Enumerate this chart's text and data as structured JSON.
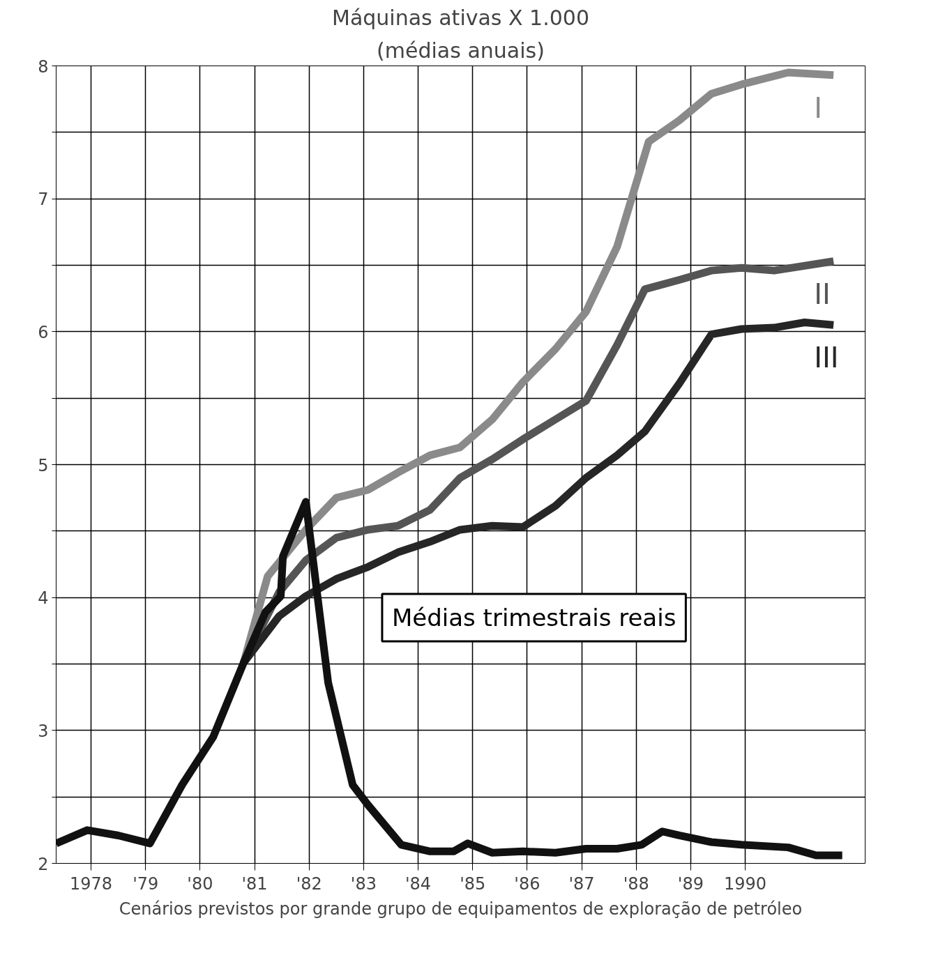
{
  "chart_data": {
    "type": "line",
    "title": "Máquinas ativas X 1.000",
    "subtitle": "(médias anuais)",
    "xlabel": "Cenários previstos por grande grupo de equipamentos de exploração de petróleo",
    "xlim": [
      1977.36,
      1992.2
    ],
    "ylim": [
      2,
      8
    ],
    "xticks": [
      1978,
      {
        "value": 1979,
        "label": "'79"
      },
      {
        "value": 1980,
        "label": "'80"
      },
      {
        "value": 1981,
        "label": "'81"
      },
      {
        "value": 1982,
        "label": "'82"
      },
      {
        "value": 1983,
        "label": "'83"
      },
      {
        "value": 1984,
        "label": "'84"
      },
      {
        "value": 1985,
        "label": "'85"
      },
      {
        "value": 1986,
        "label": "'86"
      },
      {
        "value": 1987,
        "label": "'87"
      },
      {
        "value": 1988,
        "label": "'88"
      },
      {
        "value": 1989,
        "label": "'89"
      },
      1990
    ],
    "yticks": [
      2,
      {
        "value": 2.5,
        "label": null
      },
      3,
      {
        "value": 3.5,
        "label": null
      },
      4,
      {
        "value": 4.5,
        "label": null
      },
      5,
      {
        "value": 5.5,
        "label": null
      },
      6,
      {
        "value": 6.5,
        "label": null
      },
      7,
      {
        "value": 7.5,
        "label": null
      },
      8
    ],
    "grid": true,
    "marker": "none",
    "line_style": "solid",
    "series": [
      {
        "name": "I",
        "color": "#8a8a8a",
        "x": [
          1980.8,
          1981.24,
          1981.94,
          1982.5,
          1983.08,
          1983.63,
          1984.22,
          1984.77,
          1985.36,
          1985.92,
          1986.52,
          1987.08,
          1987.65,
          1988.23,
          1988.79,
          1989.38,
          1989.93,
          1990.79,
          1991.62
        ],
        "values": [
          3.51,
          4.16,
          4.51,
          4.75,
          4.81,
          4.94,
          5.07,
          5.13,
          5.34,
          5.62,
          5.87,
          6.15,
          6.64,
          7.43,
          7.59,
          7.79,
          7.86,
          7.95,
          7.93
        ]
      },
      {
        "name": "II",
        "color": "#555555",
        "x": [
          1980.8,
          1981.45,
          1981.94,
          1982.5,
          1983.08,
          1983.63,
          1984.22,
          1984.77,
          1985.36,
          1985.92,
          1986.52,
          1987.08,
          1987.65,
          1988.16,
          1988.79,
          1989.38,
          1989.93,
          1990.53,
          1991.62
        ],
        "values": [
          3.51,
          4.04,
          4.28,
          4.45,
          4.51,
          4.54,
          4.66,
          4.9,
          5.04,
          5.19,
          5.34,
          5.48,
          5.9,
          6.32,
          6.39,
          6.46,
          6.48,
          6.46,
          6.53
        ]
      },
      {
        "name": "III",
        "color": "#262626",
        "x": [
          1980.8,
          1981.45,
          1981.94,
          1982.5,
          1983.08,
          1983.63,
          1984.22,
          1984.77,
          1985.36,
          1985.92,
          1986.52,
          1987.08,
          1987.65,
          1988.16,
          1988.79,
          1989.38,
          1989.93,
          1990.53,
          1991.09,
          1991.62
        ],
        "values": [
          3.51,
          3.86,
          4.01,
          4.14,
          4.23,
          4.34,
          4.42,
          4.51,
          4.54,
          4.53,
          4.69,
          4.9,
          5.07,
          5.25,
          5.61,
          5.98,
          6.02,
          6.03,
          6.07,
          6.05
        ]
      },
      {
        "name": "Médias trimestrais reais",
        "color": "#111111",
        "x": [
          1977.36,
          1977.93,
          1978.5,
          1979.08,
          1979.67,
          1980.24,
          1980.8,
          1981.2,
          1981.48,
          1981.52,
          1981.94,
          1982.35,
          1982.8,
          1983.08,
          1983.69,
          1984.22,
          1984.65,
          1984.91,
          1985.36,
          1985.92,
          1986.52,
          1987.08,
          1987.65,
          1988.1,
          1988.48,
          1988.79,
          1989.38,
          1989.93,
          1990.79,
          1991.3,
          1991.78
        ],
        "values": [
          2.15,
          2.25,
          2.21,
          2.15,
          2.59,
          2.95,
          3.51,
          3.89,
          4.01,
          4.31,
          4.72,
          3.36,
          2.59,
          2.44,
          2.14,
          2.09,
          2.09,
          2.15,
          2.08,
          2.09,
          2.08,
          2.11,
          2.11,
          2.14,
          2.24,
          2.21,
          2.16,
          2.14,
          2.12,
          2.06,
          2.06
        ]
      }
    ]
  }
}
